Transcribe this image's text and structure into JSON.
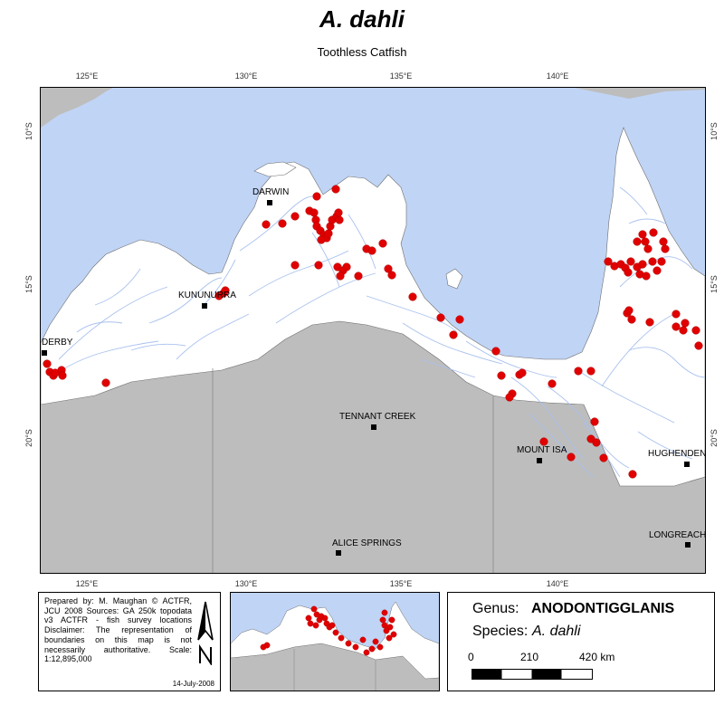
{
  "title": "A. dahli",
  "subtitle": "Toothless Catfish",
  "longitude_ticks": [
    "125°E",
    "130°E",
    "135°E",
    "140°E"
  ],
  "latitude_ticks": [
    "10°S",
    "15°S",
    "20°S"
  ],
  "towns": [
    "DARWIN",
    "KUNUNURRA",
    "DERBY",
    "TENNANT CREEK",
    "MOUNT ISA",
    "HUGHENDEN",
    "LONGREACH",
    "ALICE SPRINGS"
  ],
  "colors": {
    "sea": "#c0d4f5",
    "land_catchment": "#ffffff",
    "land_outside": "#bdbdbd",
    "rivers": "#a9c1ee",
    "survey_points": "#e00000"
  },
  "info": {
    "text": "Prepared by: M. Maughan © ACTFR, JCU 2008 Sources: GA 250k topodata v3 ACTFR - fish survey locations Disclaimer: The representation of boundaries on this map is not necessarily authoritative. Scale: 1:12,895,000",
    "date": "14-July-2008"
  },
  "legend": {
    "genus_label": "Genus:",
    "genus_value": "ANODONTIGGLANIS",
    "species_label": "Species:",
    "species_value": "A. dahli",
    "scale_labels": [
      "0",
      "210",
      "420 km"
    ]
  }
}
